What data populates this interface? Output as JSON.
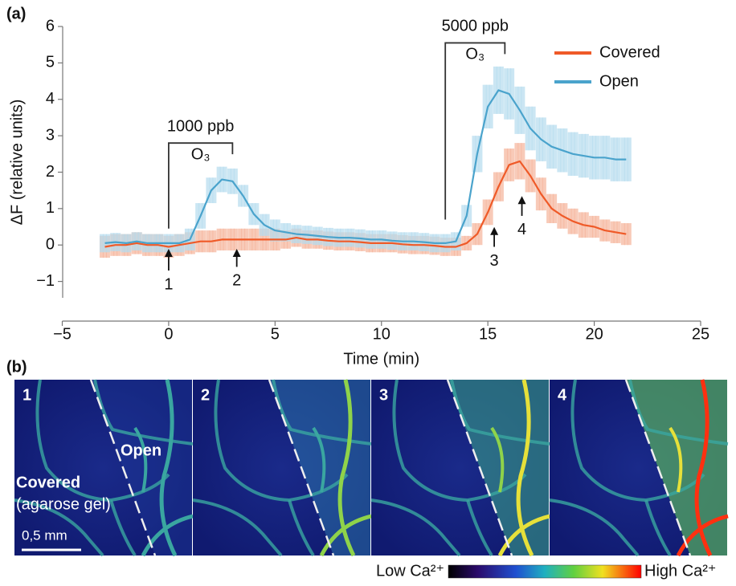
{
  "chart_data": {
    "type": "line",
    "panel_label": "(a)",
    "x_label": "Time (min)",
    "y_label": "ΔF (relative units)",
    "x": [
      -3,
      -2.5,
      -2,
      -1.5,
      -1,
      -0.5,
      0,
      0.5,
      1,
      1.5,
      2,
      2.5,
      3,
      3.5,
      4,
      4.5,
      5,
      5.5,
      6,
      6.5,
      7,
      7.5,
      8,
      8.5,
      9,
      9.5,
      10,
      10.5,
      11,
      11.5,
      12,
      12.5,
      13,
      13.5,
      14,
      14.5,
      15,
      15.5,
      16,
      16.5,
      17,
      17.5,
      18,
      18.5,
      19,
      19.5,
      20,
      20.5,
      21,
      21.5
    ],
    "series": [
      {
        "name": "Covered",
        "color": "#ef5a28",
        "band_color": "#f5b39a",
        "values": [
          -0.05,
          0,
          0,
          0.05,
          0,
          0,
          -0.05,
          0,
          0.05,
          0.1,
          0.1,
          0.15,
          0.15,
          0.15,
          0.15,
          0.15,
          0.15,
          0.15,
          0.2,
          0.15,
          0.15,
          0.12,
          0.1,
          0.1,
          0.08,
          0.05,
          0.05,
          0.05,
          0.02,
          0,
          0,
          -0.02,
          -0.05,
          -0.05,
          0.05,
          0.3,
          0.9,
          1.6,
          2.2,
          2.3,
          1.9,
          1.4,
          1.0,
          0.8,
          0.65,
          0.55,
          0.5,
          0.4,
          0.35,
          0.3
        ],
        "errors": [
          0.3,
          0.3,
          0.3,
          0.3,
          0.3,
          0.3,
          0.3,
          0.3,
          0.3,
          0.3,
          0.3,
          0.3,
          0.3,
          0.3,
          0.3,
          0.3,
          0.3,
          0.25,
          0.25,
          0.25,
          0.25,
          0.25,
          0.25,
          0.25,
          0.25,
          0.25,
          0.25,
          0.25,
          0.25,
          0.25,
          0.25,
          0.25,
          0.25,
          0.25,
          0.2,
          0.3,
          0.35,
          0.4,
          0.45,
          0.5,
          0.45,
          0.45,
          0.4,
          0.35,
          0.35,
          0.35,
          0.3,
          0.3,
          0.3,
          0.3
        ]
      },
      {
        "name": "Open",
        "color": "#4aa3cc",
        "band_color": "#b5dbee",
        "values": [
          0.05,
          0.08,
          0.05,
          0.1,
          0.05,
          0.05,
          0.05,
          0.05,
          0.15,
          0.8,
          1.5,
          1.8,
          1.75,
          1.35,
          0.85,
          0.55,
          0.4,
          0.35,
          0.3,
          0.28,
          0.25,
          0.22,
          0.2,
          0.2,
          0.18,
          0.15,
          0.15,
          0.12,
          0.1,
          0.1,
          0.08,
          0.05,
          0.05,
          0.1,
          0.8,
          2.5,
          3.8,
          4.25,
          4.15,
          3.7,
          3.2,
          2.9,
          2.7,
          2.6,
          2.5,
          2.45,
          2.4,
          2.4,
          2.35,
          2.35
        ],
        "errors": [
          0.25,
          0.25,
          0.25,
          0.25,
          0.25,
          0.25,
          0.25,
          0.25,
          0.3,
          0.35,
          0.35,
          0.35,
          0.35,
          0.3,
          0.3,
          0.3,
          0.3,
          0.25,
          0.25,
          0.25,
          0.25,
          0.25,
          0.25,
          0.25,
          0.25,
          0.25,
          0.25,
          0.25,
          0.25,
          0.25,
          0.25,
          0.25,
          0.25,
          0.25,
          0.3,
          0.5,
          0.6,
          0.65,
          0.7,
          0.65,
          0.6,
          0.6,
          0.6,
          0.6,
          0.6,
          0.6,
          0.6,
          0.6,
          0.6,
          0.6
        ]
      }
    ],
    "xlim": [
      -5,
      25
    ],
    "xticks": [
      {
        "value": -5,
        "label": "−5"
      },
      0,
      5,
      10,
      15,
      20,
      25
    ],
    "ylim": [
      -1.45,
      6
    ],
    "yticks": [
      {
        "value": -1,
        "label": "−1"
      },
      0,
      1,
      2,
      3,
      4,
      5,
      6
    ],
    "legend": "upper right",
    "exposures": [
      {
        "label": "1000 ppb",
        "gas": "O₃",
        "start": 0,
        "end": 3,
        "bottom": 0.45,
        "top": 2.8
      },
      {
        "label": "5000 ppb",
        "gas": "O₃",
        "start": 13,
        "end": 15.8,
        "bottom": 0.7,
        "top": 5.55
      }
    ],
    "arrows": [
      {
        "label": "1",
        "x": 0,
        "tail": -0.7,
        "head": -0.15
      },
      {
        "label": "2",
        "x": 3.2,
        "tail": -0.6,
        "head": -0.15
      },
      {
        "label": "3",
        "x": 15.3,
        "tail": -0.05,
        "head": 0.45
      },
      {
        "label": "4",
        "x": 16.6,
        "tail": 0.8,
        "head": 1.3
      }
    ]
  },
  "panel_b": {
    "panel_label": "(b)",
    "images": [
      {
        "label": "1"
      },
      {
        "label": "2"
      },
      {
        "label": "3"
      },
      {
        "label": "4"
      }
    ],
    "open_label": "Open",
    "covered_label": "Covered",
    "covered_note": "(agarose gel)",
    "scale_bar": "0,5 mm",
    "colorbar": {
      "low": "Low Ca²⁺",
      "high": "High Ca²⁺"
    }
  }
}
